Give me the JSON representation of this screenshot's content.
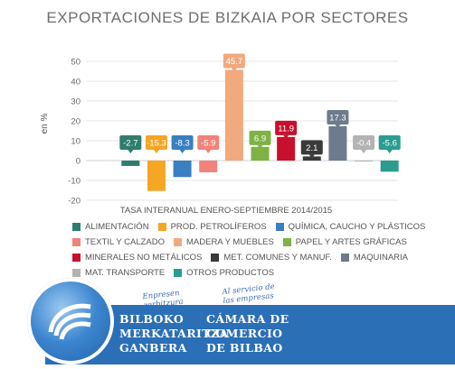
{
  "chart_data": {
    "type": "bar",
    "title": "EXPORTACIONES DE BIZKAIA POR SECTORES",
    "ylabel": "en %",
    "xlabel": "TASA INTERANUAL ENERO-SEPTIEMBRE 2014/2015",
    "ylim": [
      -20,
      50
    ],
    "yticks": [
      -20,
      -10,
      0,
      10,
      20,
      30,
      40,
      50
    ],
    "grid": true,
    "legend_position": "bottom",
    "categories": [
      "ALIMENTACIÓN",
      "PROD. PETROLÍFEROS",
      "QUÍMICA, CAUCHO Y PLÁSTICOS",
      "TEXTIL Y CALZADO",
      "MADERA Y MUEBLES",
      "PAPEL Y ARTES GRÁFICAS",
      "MINERALES NO METÁLICOS",
      "MET. COMUNES Y MANUF.",
      "MAQUINARIA",
      "MAT. TRANSPORTE",
      "OTROS PRODUCTOS"
    ],
    "values": [
      -2.7,
      -15.3,
      -8.3,
      -5.9,
      45.7,
      6.9,
      11.9,
      2.1,
      17.3,
      -0.4,
      -5.6
    ],
    "value_labels": [
      "-2.7",
      "-15.3",
      "-8.3",
      "-5.9",
      "45.7",
      "6.9",
      "11.9",
      "2.1",
      "17.3",
      "-0.4",
      "-5.6"
    ],
    "colors": [
      "#2e7d6e",
      "#f5a623",
      "#3a7fc1",
      "#f2837a",
      "#f2a97e",
      "#7cb342",
      "#c8102e",
      "#3a3a3a",
      "#6d7b8d",
      "#b3b3b3",
      "#2a9d8f"
    ],
    "legend_rows": [
      [
        0,
        1,
        2
      ],
      [
        3,
        4,
        5
      ],
      [
        6,
        7,
        8
      ],
      [
        9,
        10
      ]
    ]
  },
  "banner": {
    "script_left": "Enpresen\nzerbitzura",
    "script_right": "Al servicio de\nlas empresas",
    "name_basque": [
      "BILBOKO",
      "MERKATARITZA",
      "GANBERA"
    ],
    "name_spanish": [
      "CÁMARA DE",
      "COMERCIO",
      "DE BILBAO"
    ]
  }
}
